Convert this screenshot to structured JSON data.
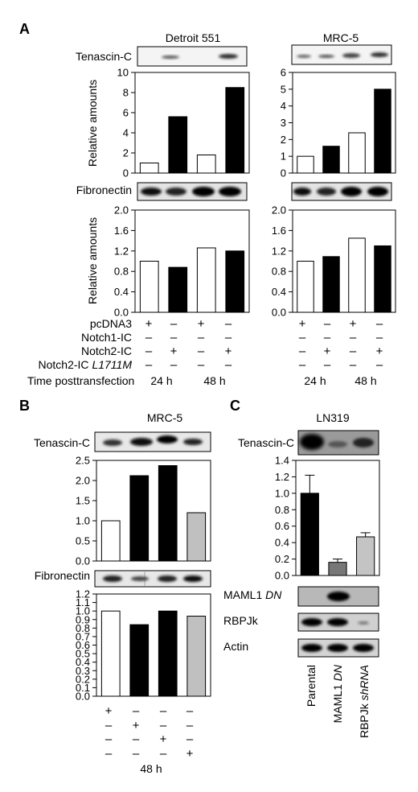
{
  "panels": {
    "A": {
      "letter": "A",
      "cells": [
        "Detroit 551",
        "MRC-5"
      ],
      "blot1": "Tenascin-C",
      "blot2": "Fibronectin",
      "ylabel": "Relative amounts",
      "rows": [
        {
          "name": "pcDNA3",
          "suffix": ""
        },
        {
          "name": "Notch1-IC",
          "suffix": ""
        },
        {
          "name": "Notch2-IC",
          "suffix": ""
        },
        {
          "name": "Notch2-IC ",
          "suffix": "L1711M"
        }
      ],
      "signs": [
        [
          "+",
          "–",
          "+",
          "–"
        ],
        [
          "–",
          "–",
          "–",
          "–"
        ],
        [
          "–",
          "+",
          "–",
          "+"
        ],
        [
          "–",
          "–",
          "–",
          "–"
        ]
      ],
      "time_label": "Time posttransfection",
      "times": [
        "24 h",
        "48 h"
      ]
    },
    "B": {
      "letter": "B",
      "cell": "MRC-5",
      "blot1": "Tenascin-C",
      "blot2": "Fibronectin",
      "signs": [
        [
          "+",
          "–",
          "–",
          "–"
        ],
        [
          "–",
          "+",
          "–",
          "–"
        ],
        [
          "–",
          "–",
          "+",
          "–"
        ],
        [
          "–",
          "–",
          "–",
          "+"
        ]
      ],
      "time": "48 h"
    },
    "C": {
      "letter": "C",
      "cell": "LN319",
      "blot1": "Tenascin-C",
      "blots": [
        {
          "name": "MAML1 ",
          "suffix": "DN"
        },
        {
          "name": "RBPJk",
          "suffix": ""
        },
        {
          "name": "Actin",
          "suffix": ""
        }
      ],
      "categories": [
        {
          "name": "Parental",
          "suffix": ""
        },
        {
          "name": "MAML1 ",
          "suffix": "DN"
        },
        {
          "name": "RBPJk ",
          "suffix": "shRNA"
        }
      ]
    }
  },
  "chart_data": [
    {
      "id": "A-detroit-tenascin",
      "type": "bar",
      "ylim": [
        0,
        10
      ],
      "ticks": [
        0,
        2,
        4,
        6,
        8,
        10
      ],
      "decimals": 0,
      "values": [
        1.0,
        5.6,
        1.8,
        8.5
      ],
      "colors": [
        "#ffffff",
        "#000000",
        "#ffffff",
        "#000000"
      ]
    },
    {
      "id": "A-mrc5-tenascin",
      "type": "bar",
      "ylim": [
        0,
        6
      ],
      "ticks": [
        0,
        1,
        2,
        3,
        4,
        5,
        6
      ],
      "decimals": 0,
      "values": [
        1.0,
        1.6,
        2.4,
        5.0
      ],
      "colors": [
        "#ffffff",
        "#000000",
        "#ffffff",
        "#000000"
      ]
    },
    {
      "id": "A-detroit-fibronectin",
      "type": "bar",
      "ylim": [
        0,
        2.0
      ],
      "ticks": [
        0,
        0.4,
        0.8,
        1.2,
        1.6,
        2.0
      ],
      "decimals": 1,
      "values": [
        1.0,
        0.88,
        1.26,
        1.2
      ],
      "colors": [
        "#ffffff",
        "#000000",
        "#ffffff",
        "#000000"
      ]
    },
    {
      "id": "A-mrc5-fibronectin",
      "type": "bar",
      "ylim": [
        0,
        2.0
      ],
      "ticks": [
        0,
        0.4,
        0.8,
        1.2,
        1.6,
        2.0
      ],
      "decimals": 1,
      "values": [
        1.0,
        1.09,
        1.45,
        1.3
      ],
      "colors": [
        "#ffffff",
        "#000000",
        "#ffffff",
        "#000000"
      ]
    },
    {
      "id": "B-tenascin",
      "type": "bar",
      "ylim": [
        0,
        2.5
      ],
      "ticks": [
        0,
        0.5,
        1.0,
        1.5,
        2.0,
        2.5
      ],
      "decimals": 1,
      "values": [
        1.0,
        2.12,
        2.37,
        1.2
      ],
      "colors": [
        "#ffffff",
        "#000000",
        "#000000",
        "#c0c0c0"
      ]
    },
    {
      "id": "B-fibronectin",
      "type": "bar",
      "ylim": [
        0,
        1.2
      ],
      "ticks": [
        0,
        0.1,
        0.2,
        0.3,
        0.4,
        0.5,
        0.6,
        0.7,
        0.8,
        0.9,
        1.0,
        1.1,
        1.2
      ],
      "decimals": 1,
      "values": [
        1.0,
        0.84,
        1.0,
        0.94
      ],
      "colors": [
        "#ffffff",
        "#000000",
        "#000000",
        "#c0c0c0"
      ]
    },
    {
      "id": "C-tenascin",
      "type": "bar",
      "ylim": [
        0,
        1.4
      ],
      "ticks": [
        0,
        0.2,
        0.4,
        0.6,
        0.8,
        1.0,
        1.2,
        1.4
      ],
      "decimals": 1,
      "categories": [
        "Parental",
        "MAML1 DN",
        "RBPJk shRNA"
      ],
      "values": [
        1.0,
        0.16,
        0.47
      ],
      "errors": [
        0.22,
        0.04,
        0.05
      ],
      "colors": [
        "#000000",
        "#777777",
        "#c4c4c4"
      ]
    }
  ]
}
